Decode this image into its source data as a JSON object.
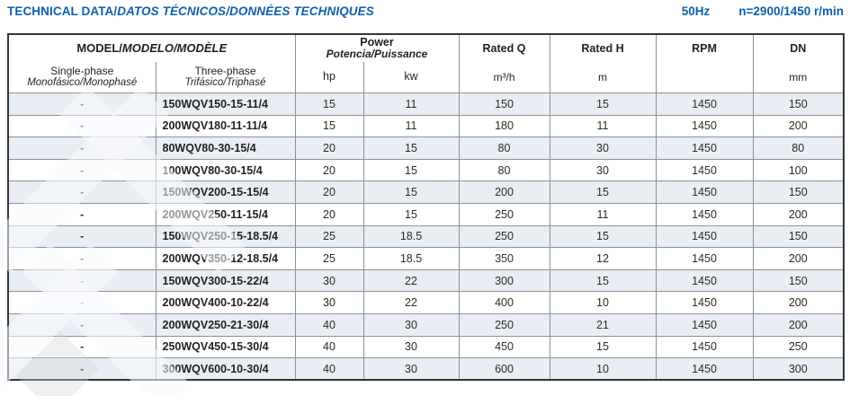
{
  "header": {
    "title": {
      "main": "TECHNICAL DATA/",
      "intl": "DATOS TÉCNICOS/DONNÉES TECHNIQUES"
    },
    "frequency": "50Hz",
    "speed": "n=2900/1450 r/min"
  },
  "table": {
    "model_group": {
      "main": "MODEL/",
      "intl": "MODELO/MODÈLE"
    },
    "power_group": {
      "main": "Power",
      "intl": "Potencia/Puissance"
    },
    "columns": {
      "single_phase": {
        "label": "Single-phase",
        "intl": "Monofásico/Monophasé"
      },
      "three_phase": {
        "label": "Three-phase",
        "intl": "Trifásico/Triphasé"
      },
      "hp": "hp",
      "kw": "kw",
      "rated_q": {
        "label": "Rated Q",
        "unit": "m³/h"
      },
      "rated_h": {
        "label": "Rated H",
        "unit": "m"
      },
      "rpm": {
        "label": "RPM",
        "unit": ""
      },
      "dn": {
        "label": "DN",
        "unit": "mm"
      }
    },
    "rows": [
      {
        "single": "-",
        "three": "150WQV150-15-11/4",
        "hp": "15",
        "kw": "11",
        "q": "150",
        "h": "15",
        "rpm": "1450",
        "dn": "150"
      },
      {
        "single": "-",
        "three": "200WQV180-11-11/4",
        "hp": "15",
        "kw": "11",
        "q": "180",
        "h": "11",
        "rpm": "1450",
        "dn": "200"
      },
      {
        "single": "-",
        "three": "80WQV80-30-15/4",
        "hp": "20",
        "kw": "15",
        "q": "80",
        "h": "30",
        "rpm": "1450",
        "dn": "80"
      },
      {
        "single": "-",
        "three": "100WQV80-30-15/4",
        "hp": "20",
        "kw": "15",
        "q": "80",
        "h": "30",
        "rpm": "1450",
        "dn": "100"
      },
      {
        "single": "-",
        "three": "150WQV200-15-15/4",
        "hp": "20",
        "kw": "15",
        "q": "200",
        "h": "15",
        "rpm": "1450",
        "dn": "150"
      },
      {
        "single": "-",
        "three": "200WQV250-11-15/4",
        "hp": "20",
        "kw": "15",
        "q": "250",
        "h": "11",
        "rpm": "1450",
        "dn": "200"
      },
      {
        "single": "-",
        "three": "150WQV250-15-18.5/4",
        "hp": "25",
        "kw": "18.5",
        "q": "250",
        "h": "15",
        "rpm": "1450",
        "dn": "150"
      },
      {
        "single": "-",
        "three": "200WQV350-12-18.5/4",
        "hp": "25",
        "kw": "18.5",
        "q": "350",
        "h": "12",
        "rpm": "1450",
        "dn": "200"
      },
      {
        "single": "-",
        "three": "150WQV300-15-22/4",
        "hp": "30",
        "kw": "22",
        "q": "300",
        "h": "15",
        "rpm": "1450",
        "dn": "150"
      },
      {
        "single": "-",
        "three": "200WQV400-10-22/4",
        "hp": "30",
        "kw": "22",
        "q": "400",
        "h": "10",
        "rpm": "1450",
        "dn": "200"
      },
      {
        "single": "-",
        "three": "200WQV250-21-30/4",
        "hp": "40",
        "kw": "30",
        "q": "250",
        "h": "21",
        "rpm": "1450",
        "dn": "200"
      },
      {
        "single": "-",
        "three": "250WQV450-15-30/4",
        "hp": "40",
        "kw": "30",
        "q": "450",
        "h": "15",
        "rpm": "1450",
        "dn": "250"
      },
      {
        "single": "-",
        "three": "300WQV600-10-30/4",
        "hp": "40",
        "kw": "30",
        "q": "600",
        "h": "10",
        "rpm": "1450",
        "dn": "300"
      }
    ]
  },
  "colors": {
    "accent": "#0e5fad",
    "row_shade": "#e9edf4",
    "border_inner": "#8c9097",
    "border_outer": "#333639",
    "text": "#231f20"
  }
}
